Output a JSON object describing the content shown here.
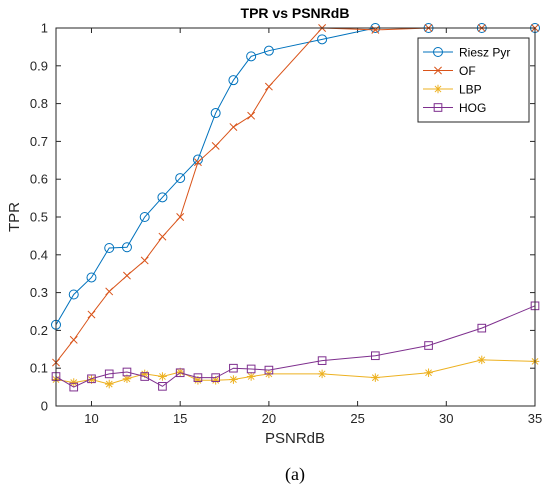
{
  "chart_data": {
    "type": "line",
    "title": "TPR vs PSNRdB",
    "xlabel": "PSNRdB",
    "ylabel": "TPR",
    "xlim": [
      8,
      35
    ],
    "ylim": [
      0,
      1
    ],
    "xticks": [
      10,
      15,
      20,
      25,
      30,
      35
    ],
    "yticks": [
      0,
      0.1,
      0.2,
      0.3,
      0.4,
      0.5,
      0.6,
      0.7,
      0.8,
      0.9,
      1
    ],
    "legend_position": "top-right",
    "caption": "(a)",
    "series": [
      {
        "name": "Riesz Pyr",
        "color": "#0072BD",
        "marker": "circle",
        "x": [
          8,
          9,
          10,
          11,
          12,
          13,
          14,
          15,
          16,
          17,
          18,
          19,
          20,
          23,
          26,
          29,
          32,
          35
        ],
        "y": [
          0.215,
          0.295,
          0.34,
          0.418,
          0.42,
          0.5,
          0.552,
          0.603,
          0.652,
          0.775,
          0.862,
          0.925,
          0.94,
          0.97,
          1.0,
          1.0,
          1.0,
          1.0
        ]
      },
      {
        "name": "OF",
        "color": "#D95319",
        "marker": "x",
        "x": [
          8,
          9,
          10,
          11,
          12,
          13,
          14,
          15,
          16,
          17,
          18,
          19,
          20,
          23,
          26,
          29,
          32,
          35
        ],
        "y": [
          0.115,
          0.175,
          0.242,
          0.303,
          0.345,
          0.385,
          0.448,
          0.5,
          0.645,
          0.688,
          0.738,
          0.768,
          0.845,
          1.0,
          0.995,
          1.0,
          1.0,
          1.0
        ]
      },
      {
        "name": "LBP",
        "color": "#EDB120",
        "marker": "asterisk",
        "x": [
          8,
          9,
          10,
          11,
          12,
          13,
          14,
          15,
          16,
          17,
          18,
          19,
          20,
          23,
          26,
          29,
          32,
          35
        ],
        "y": [
          0.07,
          0.062,
          0.07,
          0.058,
          0.072,
          0.085,
          0.078,
          0.09,
          0.068,
          0.068,
          0.07,
          0.078,
          0.085,
          0.085,
          0.075,
          0.088,
          0.122,
          0.118
        ]
      },
      {
        "name": "HOG",
        "color": "#7E2F8E",
        "marker": "square",
        "x": [
          8,
          9,
          10,
          11,
          12,
          13,
          14,
          15,
          16,
          17,
          18,
          19,
          20,
          23,
          26,
          29,
          32,
          35
        ],
        "y": [
          0.078,
          0.05,
          0.072,
          0.085,
          0.09,
          0.078,
          0.052,
          0.088,
          0.075,
          0.075,
          0.1,
          0.098,
          0.095,
          0.12,
          0.133,
          0.16,
          0.206,
          0.265
        ]
      }
    ]
  }
}
